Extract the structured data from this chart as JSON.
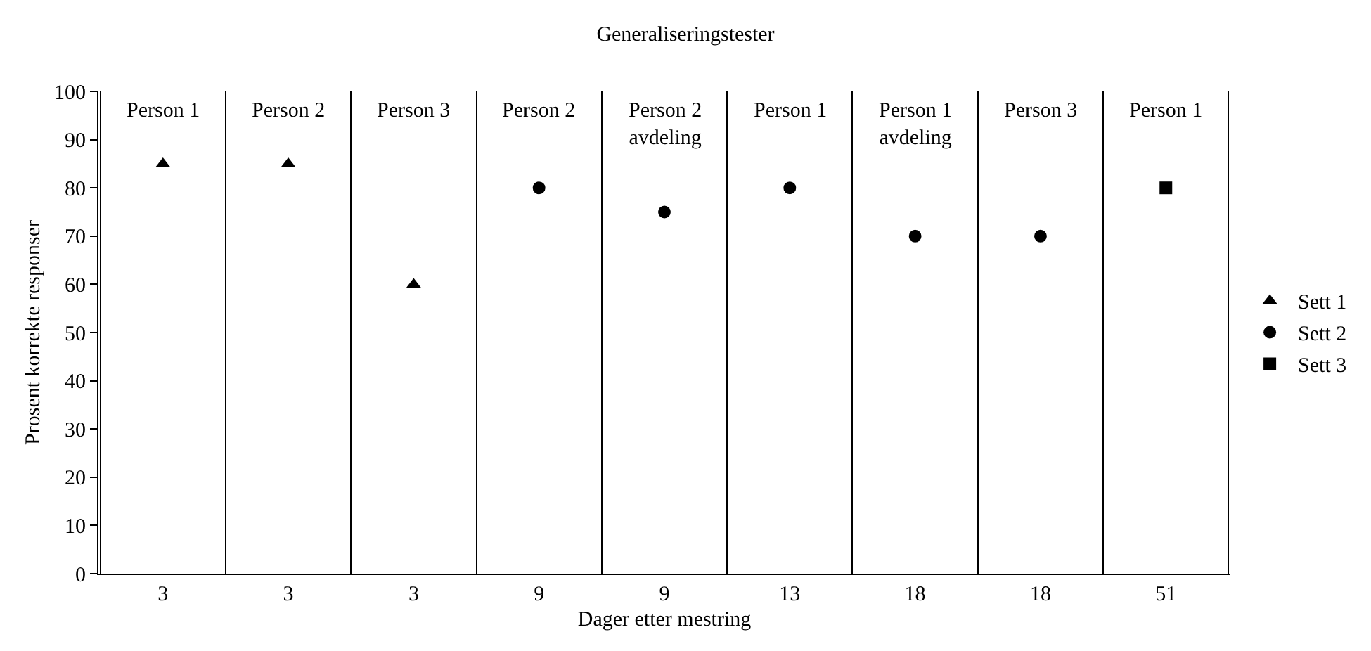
{
  "chart_data": {
    "type": "scatter",
    "title": "Generaliseringstester",
    "xlabel": "Dager etter mestring",
    "ylabel": "Prosent korrekte responser",
    "categories": [
      "3",
      "3",
      "3",
      "9",
      "9",
      "13",
      "18",
      "18",
      "51"
    ],
    "ylim": [
      0,
      100
    ],
    "yticks": [
      0,
      10,
      20,
      30,
      40,
      50,
      60,
      70,
      80,
      90,
      100
    ],
    "series": [
      {
        "name": "Sett 1",
        "color": "#000000",
        "marker": "triangle",
        "values": [
          85,
          85,
          60,
          null,
          null,
          null,
          null,
          null,
          null
        ]
      },
      {
        "name": "Sett 2",
        "color": "#000000",
        "marker": "circle",
        "values": [
          null,
          null,
          null,
          80,
          75,
          80,
          70,
          70,
          null
        ]
      },
      {
        "name": "Sett 3",
        "color": "#000000",
        "marker": "square",
        "values": [
          null,
          null,
          null,
          null,
          null,
          null,
          null,
          null,
          80
        ]
      }
    ],
    "annotations": [
      "Person 1",
      "Person 2",
      "Person 3",
      "Person 2",
      "Person 2\navdeling",
      "Person 1",
      "Person 1\navdeling",
      "Person 3",
      "Person 1"
    ],
    "grid": "x",
    "legend": "right"
  }
}
